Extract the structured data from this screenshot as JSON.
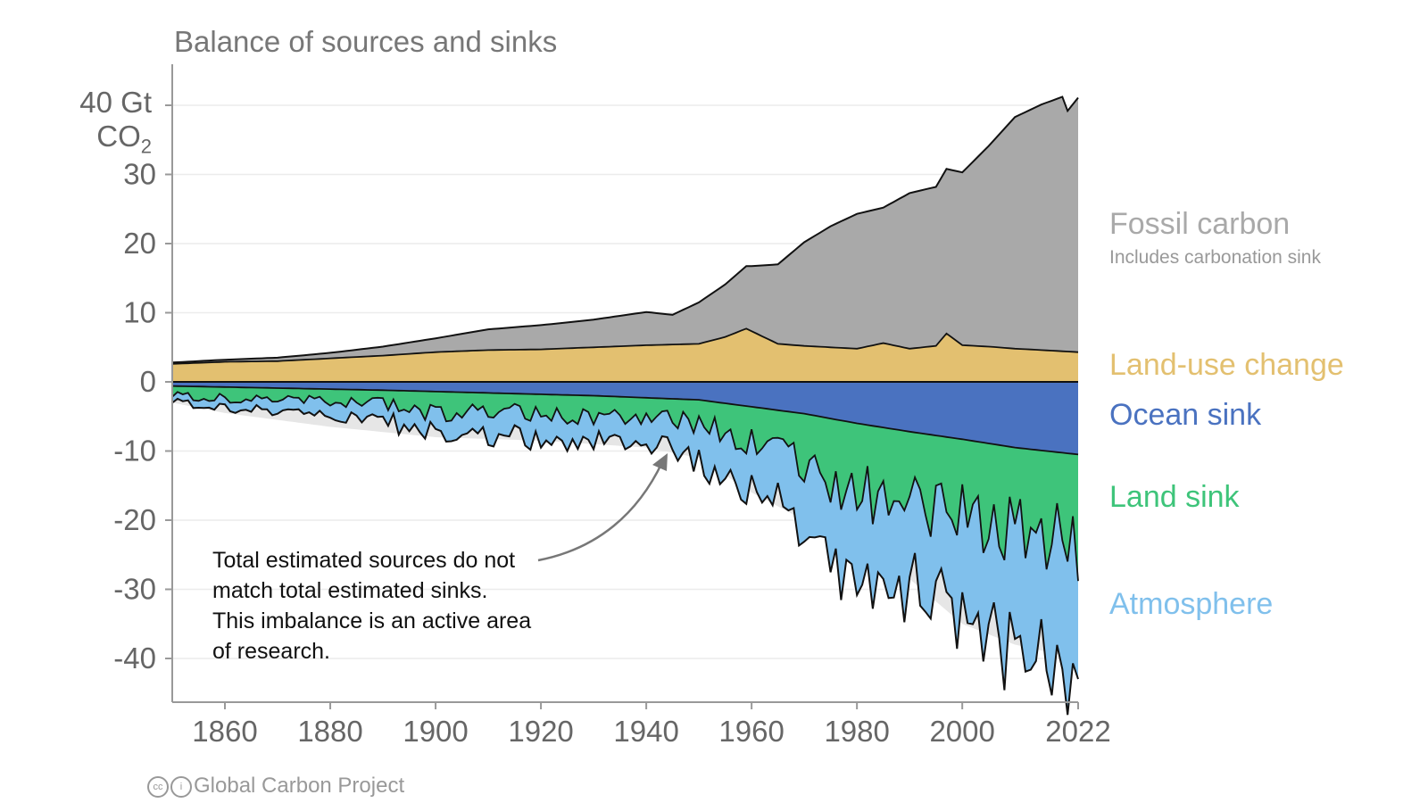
{
  "page": {
    "title": "Balance of sources and sinks",
    "y_unit_line1": "40 Gt",
    "y_unit_line2": "CO",
    "y_unit_sub": "2",
    "annotation": "Total estimated sources do not match total estimated sinks. This imbalance is an active area of research.",
    "credit": "Global Carbon Project",
    "credit_icons": [
      "cc-icon",
      "attribution-icon"
    ]
  },
  "chart_data": {
    "type": "area",
    "title": "Balance of sources and sinks",
    "xlabel": "",
    "ylabel": "Gt CO2",
    "xlim": [
      1850,
      2022
    ],
    "ylim": [
      -46,
      46
    ],
    "x_ticks": [
      1860,
      1880,
      1900,
      1920,
      1940,
      1960,
      1980,
      2000,
      2022
    ],
    "y_ticks": [
      40,
      30,
      20,
      10,
      0,
      -10,
      -20,
      -30,
      -40
    ],
    "y_tick_labels": [
      "",
      "30",
      "20",
      "10",
      "0",
      "-10",
      "-20",
      "-30",
      "-40"
    ],
    "grid": true,
    "legend": "right-side labels",
    "colors": {
      "fossil": "#a9a9a9",
      "land_use": "#e3c070",
      "ocean": "#4a72c0",
      "land": "#3ec47a",
      "atmosphere": "#80c0ec",
      "imbalance": "#e6e6e6"
    },
    "series": [
      {
        "name": "Fossil carbon",
        "subtitle": "Includes carbonation sink",
        "key": "fossil",
        "x": [
          1850,
          1860,
          1870,
          1880,
          1890,
          1900,
          1910,
          1920,
          1930,
          1940,
          1945,
          1950,
          1955,
          1960,
          1965,
          1970,
          1975,
          1980,
          1985,
          1990,
          1995,
          2000,
          2005,
          2010,
          2015,
          2019,
          2020,
          2022
        ],
        "values": [
          0.2,
          0.3,
          0.5,
          0.8,
          1.3,
          2.0,
          3.0,
          3.5,
          4.0,
          4.8,
          4.3,
          6.0,
          7.6,
          9.4,
          11.5,
          15.0,
          17.5,
          19.5,
          19.6,
          22.5,
          23.0,
          25.0,
          29.0,
          33.5,
          35.5,
          36.8,
          34.8,
          36.8
        ]
      },
      {
        "name": "Land-use change",
        "key": "land_use",
        "x": [
          1850,
          1860,
          1870,
          1880,
          1890,
          1900,
          1910,
          1920,
          1930,
          1940,
          1950,
          1955,
          1959,
          1965,
          1970,
          1975,
          1980,
          1985,
          1990,
          1995,
          1997,
          2000,
          2005,
          2010,
          2015,
          2022
        ],
        "values": [
          2.6,
          2.9,
          3.0,
          3.4,
          3.8,
          4.3,
          4.6,
          4.7,
          5.0,
          5.3,
          5.5,
          6.5,
          7.7,
          5.5,
          5.2,
          5.0,
          4.8,
          5.6,
          4.8,
          5.2,
          7.0,
          5.3,
          5.1,
          4.8,
          4.6,
          4.3
        ]
      },
      {
        "name": "Ocean sink",
        "key": "ocean",
        "x": [
          1850,
          1870,
          1890,
          1910,
          1930,
          1950,
          1960,
          1970,
          1980,
          1990,
          2000,
          2010,
          2022
        ],
        "values": [
          -0.6,
          -0.9,
          -1.2,
          -1.6,
          -2.0,
          -2.6,
          -3.6,
          -4.6,
          -6.0,
          -7.2,
          -8.3,
          -9.5,
          -10.5
        ]
      },
      {
        "name": "Land sink",
        "key": "land",
        "x": [
          1850,
          1860,
          1870,
          1880,
          1890,
          1900,
          1910,
          1920,
          1930,
          1940,
          1950,
          1960,
          1970,
          1980,
          1990,
          2000,
          2010,
          2022
        ],
        "values": [
          -1.2,
          -1.8,
          -1.4,
          -2.1,
          -1.9,
          -3.2,
          -2.5,
          -2.8,
          -3.1,
          -2.6,
          -3.5,
          -5.0,
          -8.0,
          -10.0,
          -10.5,
          -11.0,
          -12.0,
          -13.5
        ]
      },
      {
        "name": "Atmosphere",
        "key": "atmosphere",
        "x": [
          1850,
          1860,
          1870,
          1880,
          1890,
          1900,
          1910,
          1920,
          1930,
          1940,
          1950,
          1960,
          1970,
          1980,
          1990,
          2000,
          2010,
          2022
        ],
        "values": [
          -1.0,
          -1.2,
          -1.8,
          -2.2,
          -2.6,
          -3.0,
          -3.5,
          -3.8,
          -3.5,
          -3.8,
          -5.5,
          -7.0,
          -9.5,
          -12.0,
          -13.5,
          -14.5,
          -17.5,
          -18.0
        ]
      }
    ],
    "imbalance": {
      "name": "Budget imbalance",
      "key": "imbalance",
      "x": [
        1850,
        1860,
        1880,
        1900,
        1920,
        1940,
        1950,
        1960,
        1970,
        1980,
        1990,
        2000,
        2010,
        2022
      ],
      "values": [
        -3.0,
        -4.5,
        -6.5,
        -8.0,
        -8.5,
        -9.5,
        -11.0,
        -16.0,
        -20.0,
        -24.5,
        -28.5,
        -35.0,
        -38.0,
        -40.0
      ]
    }
  }
}
